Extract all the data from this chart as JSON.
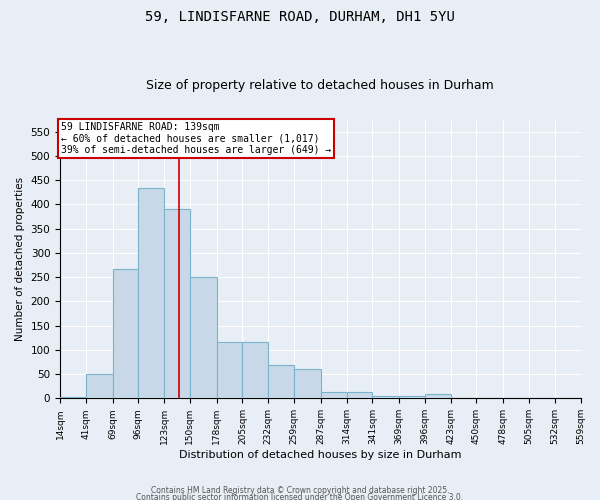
{
  "title": "59, LINDISFARNE ROAD, DURHAM, DH1 5YU",
  "subtitle": "Size of property relative to detached houses in Durham",
  "xlabel": "Distribution of detached houses by size in Durham",
  "ylabel": "Number of detached properties",
  "bar_values": [
    3,
    51,
    267,
    433,
    390,
    250,
    116,
    116,
    69,
    60,
    13,
    13,
    5,
    5,
    8,
    1,
    0,
    0,
    0,
    1
  ],
  "bin_edges": [
    14,
    41,
    69,
    96,
    123,
    150,
    178,
    205,
    232,
    259,
    287,
    314,
    341,
    369,
    396,
    423,
    450,
    478,
    505,
    532,
    559
  ],
  "bar_color": "#c8d8e8",
  "bar_edge_color": "#7ab4cc",
  "red_line_x": 139,
  "ylim": [
    0,
    575
  ],
  "yticks": [
    0,
    50,
    100,
    150,
    200,
    250,
    300,
    350,
    400,
    450,
    500,
    550
  ],
  "annotation_text": "59 LINDISFARNE ROAD: 139sqm\n← 60% of detached houses are smaller (1,017)\n39% of semi-detached houses are larger (649) →",
  "annotation_box_color": "#ffffff",
  "annotation_box_edge": "#cc0000",
  "background_color": "#e8eef5",
  "plot_bg_color": "#e8eef5",
  "grid_color": "#ffffff",
  "title_fontsize": 10,
  "subtitle_fontsize": 9,
  "footer_line1": "Contains HM Land Registry data © Crown copyright and database right 2025.",
  "footer_line2": "Contains public sector information licensed under the Open Government Licence 3.0."
}
